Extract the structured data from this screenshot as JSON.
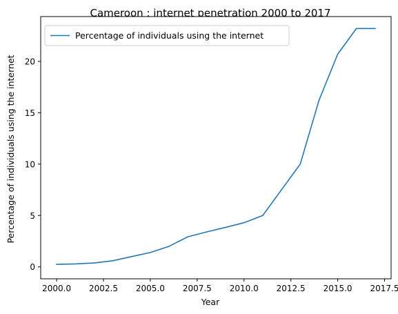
{
  "chart_data": {
    "type": "line",
    "title": "Cameroon : internet penetration 2000 to 2017",
    "xlabel": "Year",
    "ylabel": "Percentage of individuals using the internet",
    "xlim": [
      1999.15,
      2017.85
    ],
    "ylim": [
      -1.16,
      24.36
    ],
    "x_ticks": [
      2000.0,
      2002.5,
      2005.0,
      2007.5,
      2010.0,
      2012.5,
      2015.0,
      2017.5
    ],
    "x_tick_labels": [
      "2000.0",
      "2002.5",
      "2005.0",
      "2007.5",
      "2010.0",
      "2012.5",
      "2015.0",
      "2017.5"
    ],
    "y_ticks": [
      0,
      5,
      10,
      15,
      20
    ],
    "y_tick_labels": [
      "0",
      "5",
      "10",
      "15",
      "20"
    ],
    "grid": false,
    "legend_position": "upper-left",
    "series": [
      {
        "name": "Percentage of individuals using the internet",
        "color": "#1f77b4",
        "x": [
          2000,
          2001,
          2002,
          2003,
          2004,
          2005,
          2006,
          2007,
          2008,
          2009,
          2010,
          2011,
          2012,
          2013,
          2014,
          2015,
          2016,
          2017
        ],
        "y": [
          0.25,
          0.29,
          0.38,
          0.6,
          1.0,
          1.4,
          2.0,
          2.93,
          3.4,
          3.84,
          4.3,
          5.0,
          7.5,
          10.0,
          16.2,
          20.7,
          23.2,
          23.2
        ]
      }
    ]
  }
}
